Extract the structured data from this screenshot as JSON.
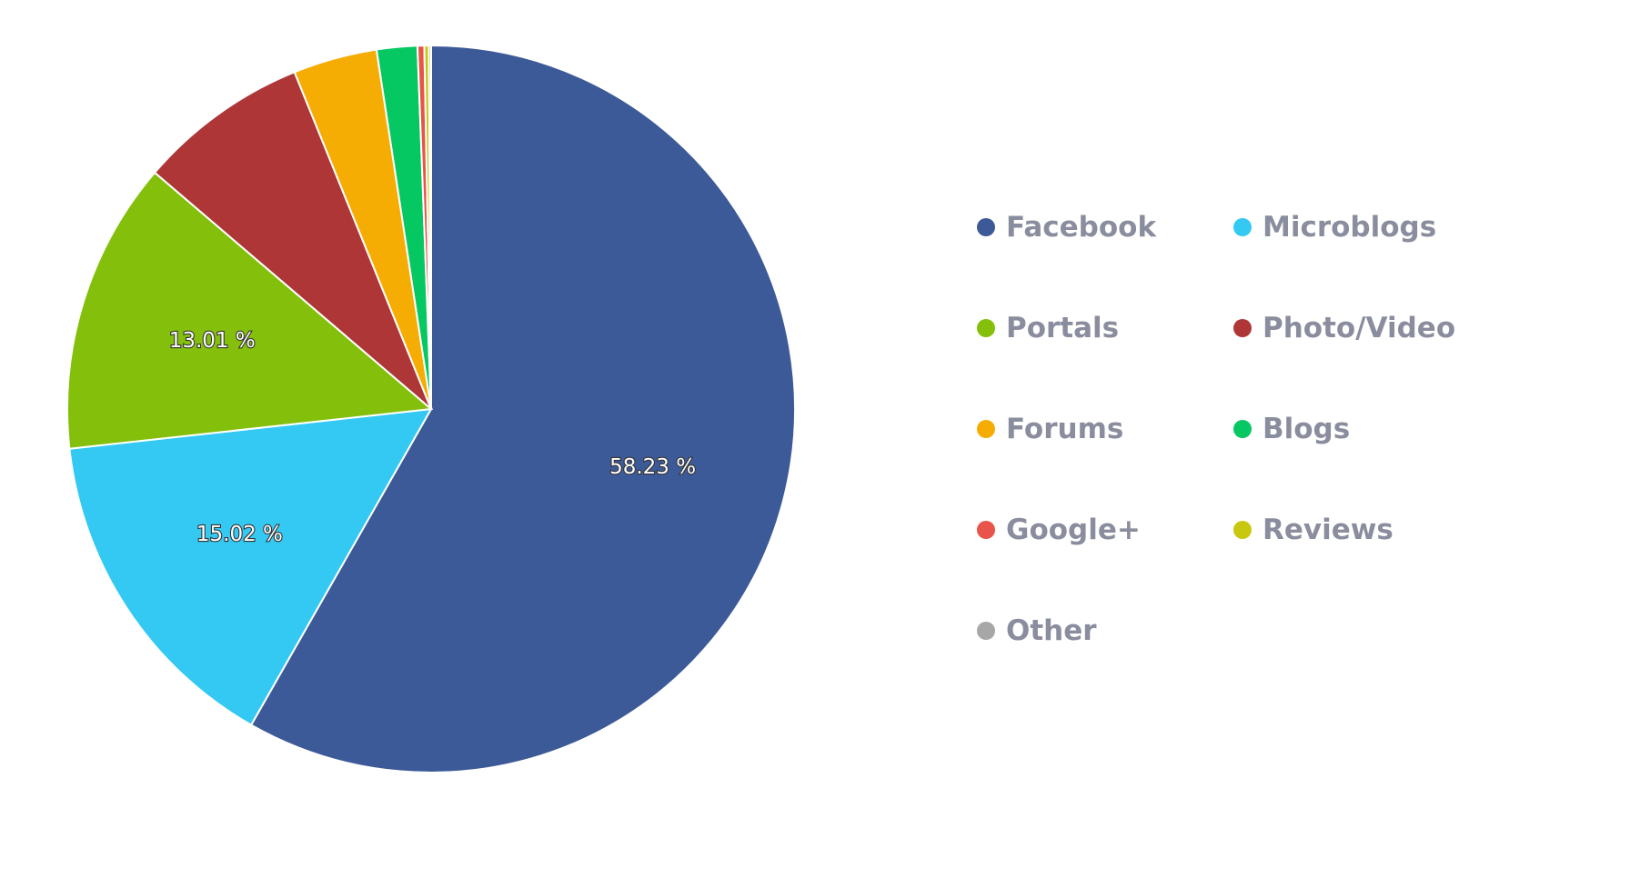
{
  "chart_data": {
    "type": "pie",
    "title": "",
    "slices": [
      {
        "name": "Facebook",
        "value": 58.23,
        "color": "#3d5a98",
        "label": "58.23 %"
      },
      {
        "name": "Microblogs",
        "value": 15.02,
        "color": "#34c9f3",
        "label": "15.02 %"
      },
      {
        "name": "Portals",
        "value": 13.01,
        "color": "#84c00b",
        "label": "13.01 %"
      },
      {
        "name": "Photo/Video",
        "value": 7.6,
        "color": "#ae3637",
        "label": ""
      },
      {
        "name": "Forums",
        "value": 3.73,
        "color": "#f6ad03",
        "label": ""
      },
      {
        "name": "Blogs",
        "value": 1.8,
        "color": "#06c863",
        "label": ""
      },
      {
        "name": "Google+",
        "value": 0.3,
        "color": "#e8534a",
        "label": ""
      },
      {
        "name": "Reviews",
        "value": 0.2,
        "color": "#c9c811",
        "label": ""
      },
      {
        "name": "Other",
        "value": 0.1,
        "color": "#a7a7a7",
        "label": ""
      }
    ],
    "legend": {
      "placement": "right",
      "items": [
        {
          "label": "Facebook",
          "color": "#3d5a98"
        },
        {
          "label": "Microblogs",
          "color": "#34c9f3"
        },
        {
          "label": "Portals",
          "color": "#84c00b"
        },
        {
          "label": "Photo/Video",
          "color": "#ae3637"
        },
        {
          "label": "Forums",
          "color": "#f6ad03"
        },
        {
          "label": "Blogs",
          "color": "#06c863"
        },
        {
          "label": "Google+",
          "color": "#e8534a"
        },
        {
          "label": "Reviews",
          "color": "#c9c811"
        },
        {
          "label": "Other",
          "color": "#a7a7a7"
        }
      ]
    }
  }
}
